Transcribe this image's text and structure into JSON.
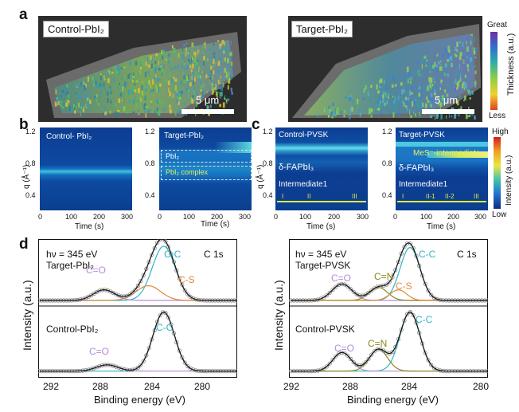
{
  "panels": {
    "a": "a",
    "b": "b",
    "c": "c",
    "d": "d"
  },
  "a": {
    "left_label": "Control-PbI₂",
    "right_label": "Target-PbI₂",
    "scale_left": "5 μm",
    "scale_right": "5 μm",
    "colorbar_title": "Thickness (a.u.)",
    "colorbar_top": "Great",
    "colorbar_bottom": "Less"
  },
  "b": {
    "left_title": "Control- PbI₂",
    "right_title": "Target-PbI₂",
    "right_band_labels": [
      "PbI₂",
      "PbI₂ complex"
    ],
    "y_label": "q (Å⁻¹)",
    "x_label": "Time (s)",
    "y_ticks": [
      "1.2",
      "0.8",
      "0.4"
    ],
    "x_ticks": [
      "0",
      "100",
      "200",
      "300"
    ]
  },
  "c": {
    "left_title": "Control-PVSK",
    "right_title": "Target-PVSK",
    "left_labels": [
      "δ-FAPbI₃",
      "Intermediate1"
    ],
    "right_labels": [
      "MeS⁻-intermediate",
      "δ-FAPbI₃",
      "Intermediate1"
    ],
    "left_stages": [
      "I",
      "II",
      "III"
    ],
    "right_stages": [
      "I",
      "II-1",
      "II-2",
      "III"
    ],
    "y_label": "q (Å⁻¹)",
    "x_label": "Time (s)",
    "y_ticks": [
      "1.2",
      "0.8",
      "0.4"
    ],
    "x_ticks": [
      "0",
      "100",
      "200",
      "300"
    ],
    "colorbar_title": "Intensity (a.u.)",
    "colorbar_top": "High",
    "colorbar_bottom": "Low"
  },
  "d": {
    "y_label": "Intensity (a.u.)",
    "x_label": "Binding energy (eV)",
    "x_ticks": [
      "292",
      "288",
      "284",
      "280"
    ],
    "core_level": "C 1s",
    "photon_left": "hν = 345 eV",
    "photon_right": "hν = 345 eV",
    "left_top_sample": "Target-PbI₂",
    "left_bottom_sample": "Control-PbI₂",
    "right_top_sample": "Target-PVSK",
    "right_bottom_sample": "Control-PVSK",
    "peak_labels": {
      "cc": "C-C",
      "co": "C=O",
      "cs": "C-S",
      "cn": "C=N"
    }
  },
  "colors": {
    "cc": "#2fb3c7",
    "co": "#b68ad8",
    "cs": "#e08a3a",
    "cn": "#8a8a1a",
    "fit": "#1a1a1a",
    "data": "#888888"
  }
}
